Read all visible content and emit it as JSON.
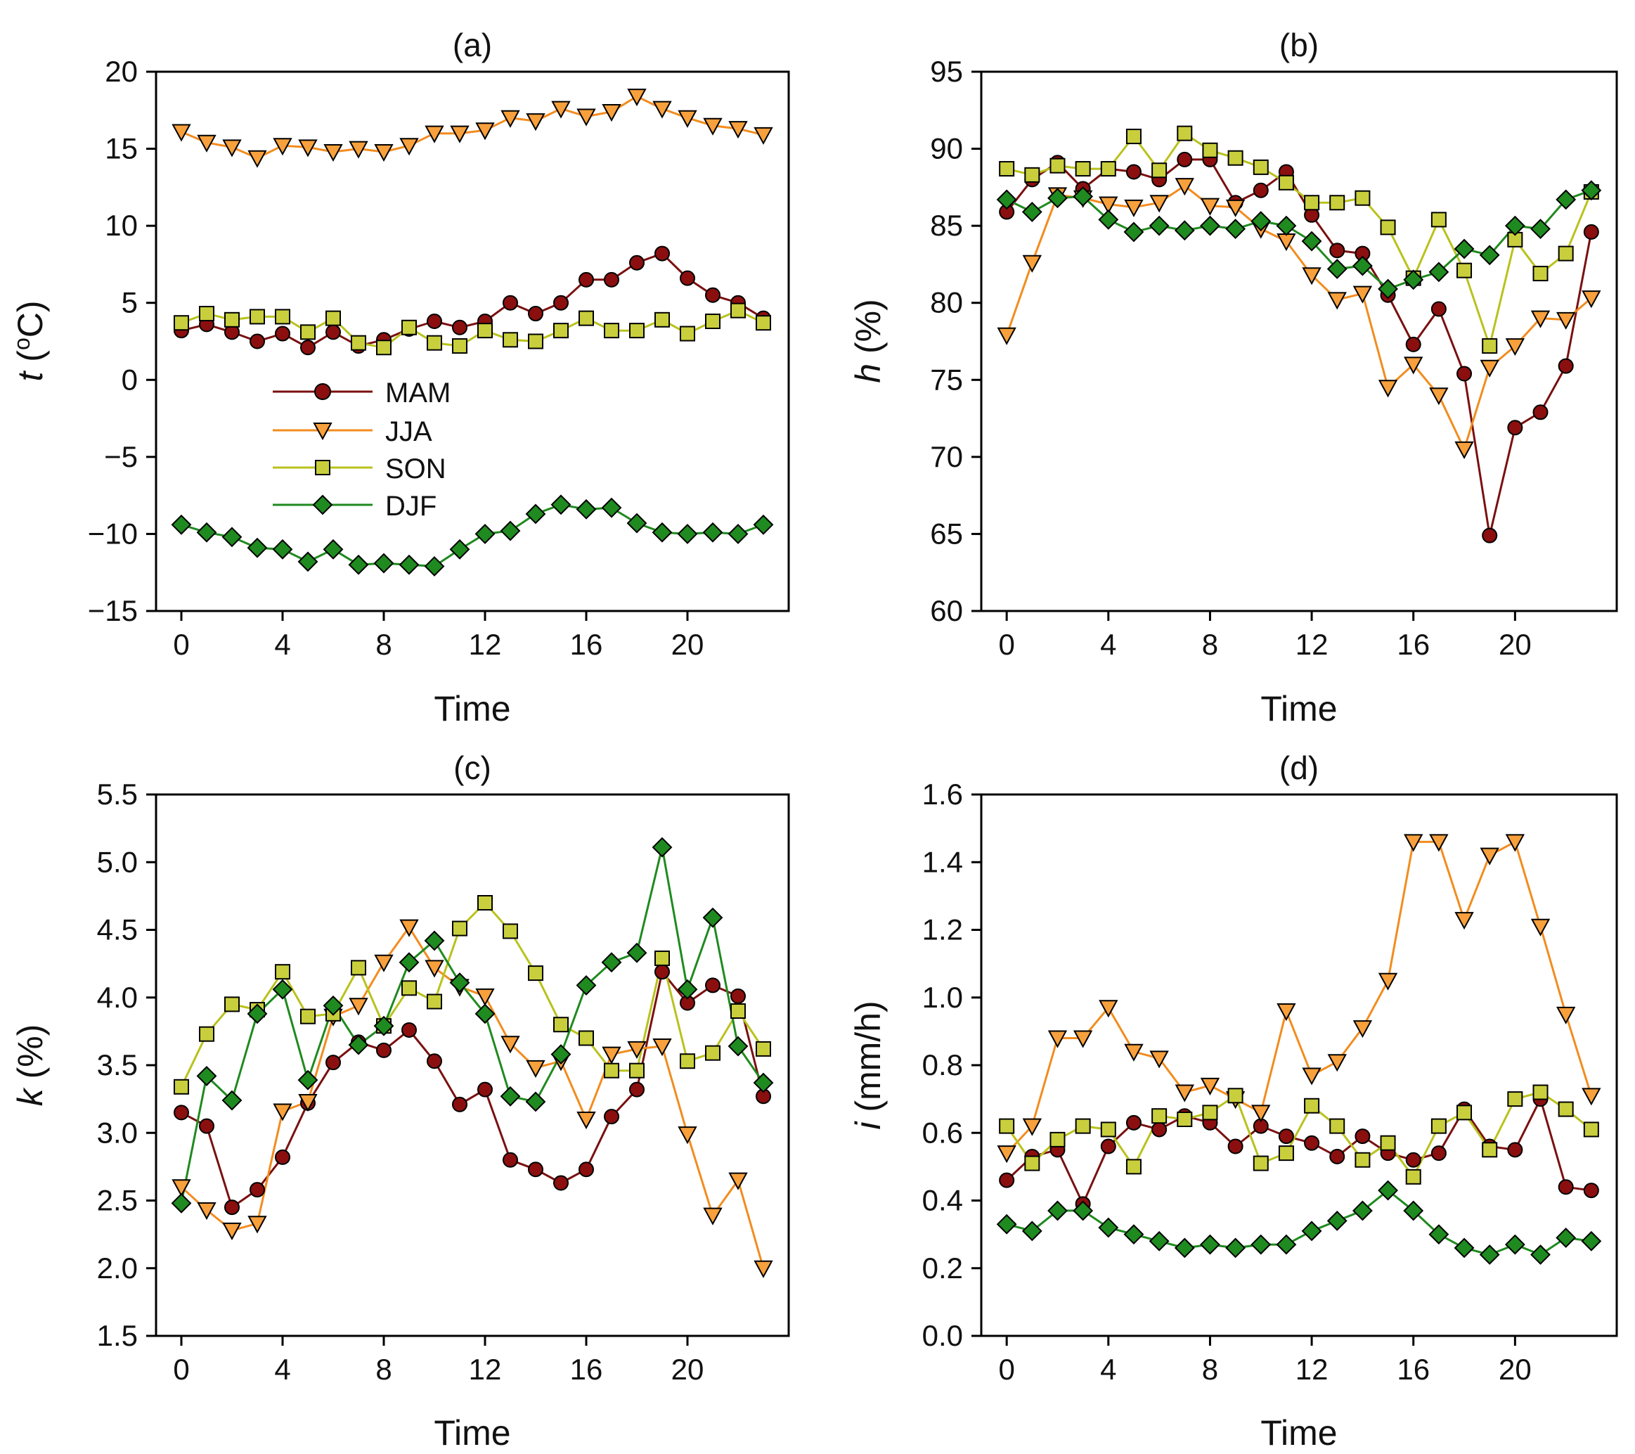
{
  "figure": {
    "legend": [
      {
        "key": "MAM",
        "label": "MAM"
      },
      {
        "key": "JJA",
        "label": "JJA"
      },
      {
        "key": "SON",
        "label": "SON"
      },
      {
        "key": "DJF",
        "label": "DJF"
      }
    ],
    "styles": {
      "MAM": {
        "line": "#7a1010",
        "fill": "#8b0f0f",
        "marker": "circle"
      },
      "JJA": {
        "line": "#f28c1e",
        "fill": "#f7a03c",
        "marker": "triangle-down"
      },
      "SON": {
        "line": "#b8c21c",
        "fill": "#c9cf3c",
        "marker": "square"
      },
      "DJF": {
        "line": "#1f8a1f",
        "fill": "#1f8a1f",
        "marker": "diamond"
      }
    }
  },
  "chart_data": [
    {
      "id": "a",
      "type": "line",
      "title": "(a)",
      "ylabel_var": "t",
      "ylabel_pre": "(",
      "ylabel_sup": "o",
      "ylabel_unit": "C)",
      "xlabel": "Time",
      "xlim": [
        -1,
        24
      ],
      "ylim": [
        -15,
        20
      ],
      "xticks": [
        0,
        4,
        8,
        12,
        16,
        20
      ],
      "xtick_labels": [
        "0",
        "4",
        "8",
        "12",
        "16",
        "20"
      ],
      "yticks": [
        -15,
        -10,
        -5,
        0,
        5,
        10,
        15,
        20
      ],
      "ytick_labels": [
        "−15",
        "−10",
        "−5",
        "0",
        "5",
        "10",
        "15",
        "20"
      ],
      "show_legend": true,
      "x": [
        0,
        1,
        2,
        3,
        4,
        5,
        6,
        7,
        8,
        9,
        10,
        11,
        12,
        13,
        14,
        15,
        16,
        17,
        18,
        19,
        20,
        21,
        22,
        23
      ],
      "series": [
        {
          "name": "MAM",
          "values": [
            3.2,
            3.6,
            3.1,
            2.5,
            3.0,
            2.1,
            3.1,
            2.2,
            2.6,
            3.3,
            3.8,
            3.4,
            3.8,
            5.0,
            4.3,
            5.0,
            6.5,
            6.5,
            7.6,
            8.2,
            6.6,
            5.5,
            5.0,
            4.0
          ]
        },
        {
          "name": "JJA",
          "values": [
            16.1,
            15.4,
            15.1,
            14.4,
            15.2,
            15.1,
            14.8,
            15.0,
            14.8,
            15.2,
            16.0,
            16.0,
            16.2,
            17.0,
            16.8,
            17.6,
            17.1,
            17.4,
            18.4,
            17.6,
            17.0,
            16.5,
            16.3,
            15.9
          ]
        },
        {
          "name": "SON",
          "values": [
            3.7,
            4.3,
            3.9,
            4.1,
            4.1,
            3.1,
            4.0,
            2.4,
            2.1,
            3.4,
            2.4,
            2.2,
            3.2,
            2.6,
            2.5,
            3.2,
            4.0,
            3.2,
            3.2,
            3.9,
            3.0,
            3.8,
            4.5,
            3.7
          ]
        },
        {
          "name": "DJF",
          "values": [
            -9.4,
            -9.9,
            -10.2,
            -10.9,
            -11.0,
            -11.8,
            -11.0,
            -12.0,
            -11.9,
            -12.0,
            -12.1,
            -11.0,
            -10.0,
            -9.8,
            -8.7,
            -8.1,
            -8.4,
            -8.3,
            -9.3,
            -9.9,
            -10.0,
            -9.9,
            -10.0,
            -9.4
          ]
        }
      ]
    },
    {
      "id": "b",
      "type": "line",
      "title": "(b)",
      "ylabel_var": "h",
      "ylabel_pre": "(%)",
      "ylabel_sup": "",
      "ylabel_unit": "",
      "xlabel": "Time",
      "xlim": [
        -1,
        24
      ],
      "ylim": [
        60,
        95
      ],
      "xticks": [
        0,
        4,
        8,
        12,
        16,
        20
      ],
      "xtick_labels": [
        "0",
        "4",
        "8",
        "12",
        "16",
        "20"
      ],
      "yticks": [
        60,
        65,
        70,
        75,
        80,
        85,
        90,
        95
      ],
      "ytick_labels": [
        "60",
        "65",
        "70",
        "75",
        "80",
        "85",
        "90",
        "95"
      ],
      "show_legend": false,
      "x": [
        0,
        1,
        2,
        3,
        4,
        5,
        6,
        7,
        8,
        9,
        10,
        11,
        12,
        13,
        14,
        15,
        16,
        17,
        18,
        19,
        20,
        21,
        22,
        23
      ],
      "series": [
        {
          "name": "MAM",
          "values": [
            85.9,
            88.0,
            89.1,
            87.4,
            88.7,
            88.5,
            88.0,
            89.3,
            89.3,
            86.5,
            87.3,
            88.5,
            85.7,
            83.4,
            83.2,
            80.5,
            77.3,
            79.6,
            75.4,
            64.9,
            71.9,
            72.9,
            75.9,
            84.6
          ]
        },
        {
          "name": "JJA",
          "values": [
            77.9,
            82.6,
            87.0,
            86.8,
            86.4,
            86.2,
            86.5,
            87.6,
            86.3,
            86.2,
            84.8,
            84.0,
            81.8,
            80.2,
            80.6,
            74.5,
            76.0,
            74.0,
            70.5,
            75.8,
            77.2,
            79.0,
            78.9,
            80.3
          ]
        },
        {
          "name": "SON",
          "values": [
            88.7,
            88.3,
            88.9,
            88.7,
            88.7,
            90.8,
            88.6,
            91.0,
            89.9,
            89.4,
            88.8,
            87.8,
            86.5,
            86.5,
            86.8,
            84.9,
            81.6,
            85.4,
            82.1,
            77.2,
            84.1,
            81.9,
            83.2,
            87.2
          ]
        },
        {
          "name": "DJF",
          "values": [
            86.7,
            85.9,
            86.8,
            86.9,
            85.4,
            84.6,
            85.0,
            84.7,
            85.0,
            84.8,
            85.3,
            85.0,
            84.0,
            82.2,
            82.4,
            80.9,
            81.5,
            82.0,
            83.5,
            83.1,
            85.0,
            84.8,
            86.7,
            87.3
          ]
        }
      ]
    },
    {
      "id": "c",
      "type": "line",
      "title": "(c)",
      "ylabel_var": "k",
      "ylabel_pre": "(%)",
      "ylabel_sup": "",
      "ylabel_unit": "",
      "xlabel": "Time",
      "xlim": [
        -1,
        24
      ],
      "ylim": [
        1.5,
        5.5
      ],
      "xticks": [
        0,
        4,
        8,
        12,
        16,
        20
      ],
      "xtick_labels": [
        "0",
        "4",
        "8",
        "12",
        "16",
        "20"
      ],
      "yticks": [
        1.5,
        2.0,
        2.5,
        3.0,
        3.5,
        4.0,
        4.5,
        5.0,
        5.5
      ],
      "ytick_labels": [
        "1.5",
        "2.0",
        "2.5",
        "3.0",
        "3.5",
        "4.0",
        "4.5",
        "5.0",
        "5.5"
      ],
      "show_legend": false,
      "x": [
        0,
        1,
        2,
        3,
        4,
        5,
        6,
        7,
        8,
        9,
        10,
        11,
        12,
        13,
        14,
        15,
        16,
        17,
        18,
        19,
        20,
        21,
        22,
        23
      ],
      "series": [
        {
          "name": "MAM",
          "values": [
            3.15,
            3.05,
            2.45,
            2.58,
            2.82,
            3.22,
            3.52,
            3.67,
            3.61,
            3.76,
            3.53,
            3.21,
            3.32,
            2.8,
            2.73,
            2.63,
            2.73,
            3.12,
            3.32,
            4.19,
            3.96,
            4.09,
            4.01,
            3.27
          ]
        },
        {
          "name": "JJA",
          "values": [
            2.6,
            2.43,
            2.28,
            2.33,
            3.16,
            3.23,
            3.86,
            3.94,
            4.26,
            4.52,
            4.22,
            4.08,
            4.01,
            3.66,
            3.48,
            3.53,
            3.1,
            3.58,
            3.62,
            3.64,
            2.99,
            2.39,
            2.65,
            2.0
          ]
        },
        {
          "name": "SON",
          "values": [
            3.34,
            3.73,
            3.95,
            3.91,
            4.19,
            3.86,
            3.88,
            4.22,
            3.79,
            4.07,
            3.97,
            4.51,
            4.7,
            4.49,
            4.18,
            3.8,
            3.7,
            3.46,
            3.46,
            4.29,
            3.53,
            3.59,
            3.9,
            3.62
          ]
        },
        {
          "name": "DJF",
          "values": [
            2.48,
            3.42,
            3.24,
            3.88,
            4.06,
            3.39,
            3.94,
            3.65,
            3.79,
            4.26,
            4.42,
            4.11,
            3.88,
            3.27,
            3.23,
            3.58,
            4.09,
            4.26,
            4.33,
            5.11,
            4.06,
            4.59,
            3.64,
            3.37
          ]
        }
      ]
    },
    {
      "id": "d",
      "type": "line",
      "title": "(d)",
      "ylabel_var": "i",
      "ylabel_pre": "(mm/h)",
      "ylabel_sup": "",
      "ylabel_unit": "",
      "xlabel": "Time",
      "xlim": [
        -1,
        24
      ],
      "ylim": [
        0.0,
        1.6
      ],
      "xticks": [
        0,
        4,
        8,
        12,
        16,
        20
      ],
      "xtick_labels": [
        "0",
        "4",
        "8",
        "12",
        "16",
        "20"
      ],
      "yticks": [
        0.0,
        0.2,
        0.4,
        0.6,
        0.8,
        1.0,
        1.2,
        1.4,
        1.6
      ],
      "ytick_labels": [
        "0.0",
        "0.2",
        "0.4",
        "0.6",
        "0.8",
        "1.0",
        "1.2",
        "1.4",
        "1.6"
      ],
      "show_legend": false,
      "x": [
        0,
        1,
        2,
        3,
        4,
        5,
        6,
        7,
        8,
        9,
        10,
        11,
        12,
        13,
        14,
        15,
        16,
        17,
        18,
        19,
        20,
        21,
        22,
        23
      ],
      "series": [
        {
          "name": "MAM",
          "values": [
            0.46,
            0.53,
            0.55,
            0.39,
            0.56,
            0.63,
            0.61,
            0.65,
            0.63,
            0.56,
            0.62,
            0.59,
            0.57,
            0.53,
            0.59,
            0.54,
            0.52,
            0.54,
            0.67,
            0.56,
            0.55,
            0.7,
            0.44,
            0.43
          ]
        },
        {
          "name": "JJA",
          "values": [
            0.54,
            0.62,
            0.88,
            0.88,
            0.97,
            0.84,
            0.82,
            0.72,
            0.74,
            0.7,
            0.66,
            0.96,
            0.77,
            0.81,
            0.91,
            1.05,
            1.46,
            1.46,
            1.23,
            1.42,
            1.46,
            1.21,
            0.95,
            0.71
          ]
        },
        {
          "name": "SON",
          "values": [
            0.62,
            0.51,
            0.58,
            0.62,
            0.61,
            0.5,
            0.65,
            0.64,
            0.66,
            0.71,
            0.51,
            0.54,
            0.68,
            0.62,
            0.52,
            0.57,
            0.47,
            0.62,
            0.66,
            0.55,
            0.7,
            0.72,
            0.67,
            0.61
          ]
        },
        {
          "name": "DJF",
          "values": [
            0.33,
            0.31,
            0.37,
            0.37,
            0.32,
            0.3,
            0.28,
            0.26,
            0.27,
            0.26,
            0.27,
            0.27,
            0.31,
            0.34,
            0.37,
            0.43,
            0.37,
            0.3,
            0.26,
            0.24,
            0.27,
            0.24,
            0.29,
            0.28
          ]
        }
      ]
    }
  ]
}
